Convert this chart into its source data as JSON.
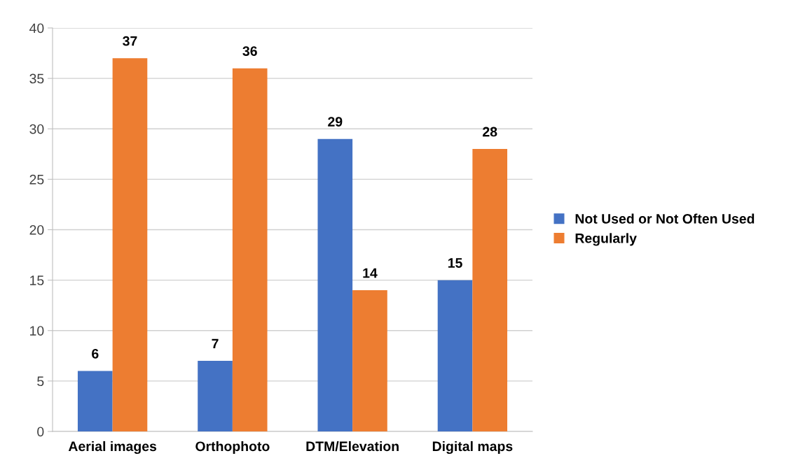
{
  "chart_data": {
    "type": "bar",
    "categories": [
      "Aerial images",
      "Orthophoto",
      "DTM/Elevation",
      "Digital maps"
    ],
    "series": [
      {
        "name": "Not Used or Not Often Used",
        "color": "#4472c4",
        "values": [
          6,
          7,
          29,
          15
        ]
      },
      {
        "name": "Regularly",
        "color": "#ed7d31",
        "values": [
          37,
          36,
          14,
          28
        ]
      }
    ],
    "ylim": [
      0,
      40
    ],
    "yticks": [
      0,
      5,
      10,
      15,
      20,
      25,
      30,
      35,
      40
    ],
    "grid": "y",
    "legend": "right",
    "data_labels": true
  }
}
